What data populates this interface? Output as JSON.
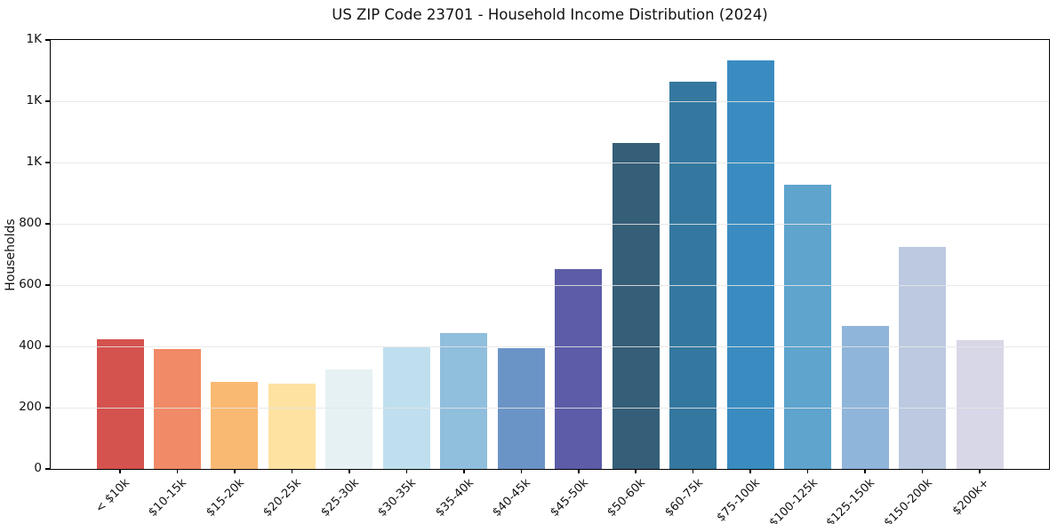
{
  "chart_data": {
    "type": "bar",
    "title": "US ZIP Code 23701 - Household Income Distribution (2024)",
    "xlabel": "",
    "ylabel": "Households",
    "categories": [
      "< $10k",
      "$10-15k",
      "$15-20k",
      "$20-25k",
      "$25-30k",
      "$30-35k",
      "$35-40k",
      "$40-45k",
      "$45-50k",
      "$50-60k",
      "$60-75k",
      "$75-100k",
      "$100-125k",
      "$125-150k",
      "$150-200k",
      "$200k+"
    ],
    "values": [
      423,
      392,
      285,
      278,
      325,
      397,
      444,
      394,
      652,
      1064,
      1264,
      1334,
      928,
      467,
      725,
      420
    ],
    "bar_colors": [
      "#d5534e",
      "#f18a66",
      "#fab972",
      "#fde2a1",
      "#e6f1f4",
      "#bfdfee",
      "#90bedd",
      "#6b94c6",
      "#5c5ca8",
      "#355e78",
      "#34789f",
      "#3a8cc0",
      "#5ea4cd",
      "#8fb5da",
      "#bcc9e1",
      "#d7d7e7"
    ],
    "ylim": [
      0,
      1400
    ],
    "yticks": [
      {
        "value": 0,
        "label": "0"
      },
      {
        "value": 200,
        "label": "200"
      },
      {
        "value": 400,
        "label": "400"
      },
      {
        "value": 600,
        "label": "600"
      },
      {
        "value": 800,
        "label": "800"
      },
      {
        "value": 1000,
        "label": "1K"
      },
      {
        "value": 1200,
        "label": "1K"
      },
      {
        "value": 1400,
        "label": "1K"
      }
    ],
    "grid": "horizontal",
    "legend": "none",
    "x_tick_rotation_deg": 45
  }
}
